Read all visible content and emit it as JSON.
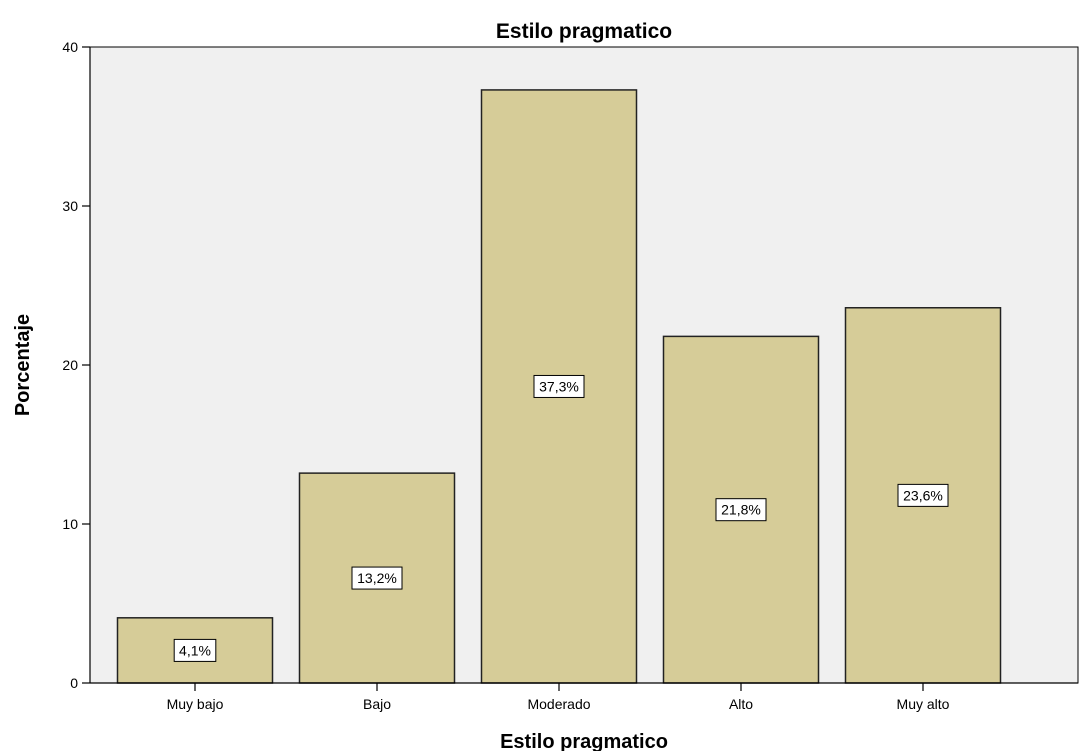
{
  "chart_data": {
    "type": "bar",
    "title": "Estilo pragmatico",
    "xlabel": "Estilo pragmatico",
    "ylabel": "Porcentaje",
    "categories": [
      "Muy bajo",
      "Bajo",
      "Moderado",
      "Alto",
      "Muy alto"
    ],
    "values": [
      4.1,
      13.2,
      37.3,
      21.8,
      23.6
    ],
    "data_labels": [
      "4,1%",
      "13,2%",
      "37,3%",
      "21,8%",
      "23,6%"
    ],
    "ylim": [
      0,
      40
    ],
    "yticks": [
      "0",
      "10",
      "20",
      "30",
      "40"
    ],
    "grid": false,
    "legend": "none",
    "colors": {
      "bar_fill": "#d6cc98",
      "bar_stroke": "#222222",
      "plot_background": "#f0f0f0",
      "label_box": "#ffffff"
    }
  }
}
